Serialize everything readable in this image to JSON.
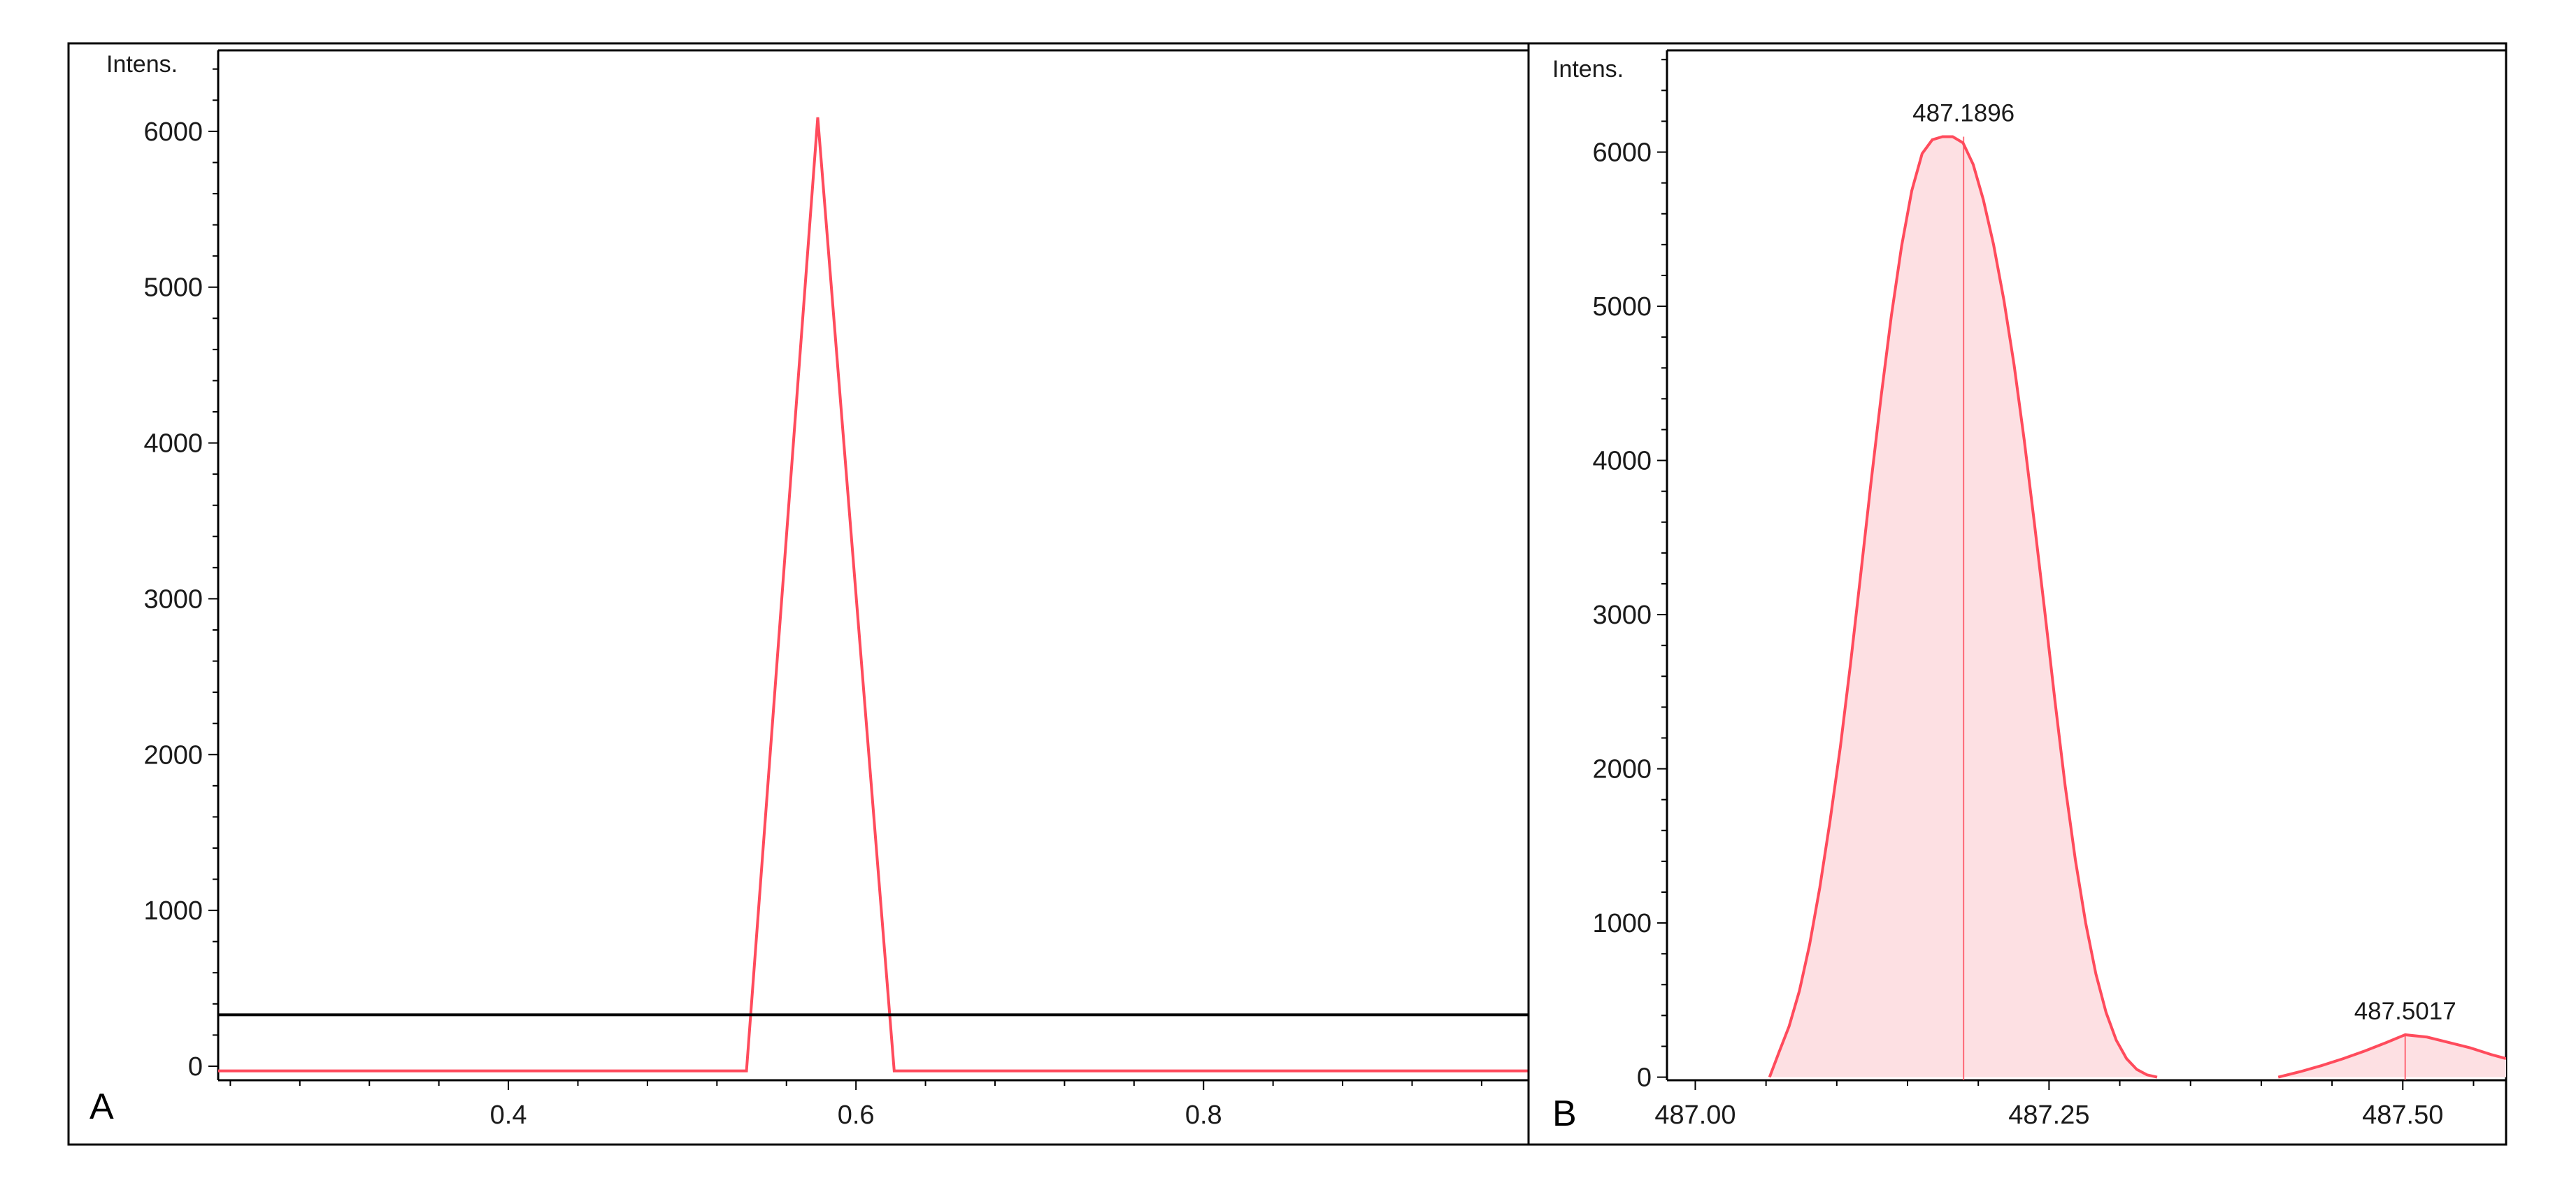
{
  "colors": {
    "trace": "#ff4b5c",
    "fill": "#fde0e3",
    "axis": "#000000",
    "text": "#1a1a1a"
  },
  "chart_data": [
    {
      "panel_label": "A",
      "type": "line",
      "ylabel": "Intens.",
      "xlabel": "",
      "xlim": [
        0.233,
        0.987
      ],
      "ylim": [
        -90,
        6520
      ],
      "x_ticks": [
        "0.4",
        "0.6",
        "0.8"
      ],
      "y_ticks": [
        "0",
        "1000",
        "2000",
        "3000",
        "4000",
        "5000",
        "6000"
      ],
      "threshold_line": 330,
      "series": [
        {
          "x": [
            0.233,
            0.537,
            0.578,
            0.622,
            0.987
          ],
          "y": [
            -30,
            -30,
            6090,
            -30,
            -30
          ]
        }
      ]
    },
    {
      "panel_label": "B",
      "type": "area",
      "ylabel": "Intens.",
      "xlabel": "",
      "xlim": [
        486.98,
        487.573
      ],
      "ylim": [
        -20,
        6660
      ],
      "x_ticks": [
        "487.00",
        "487.25",
        "487.50"
      ],
      "y_ticks": [
        "0",
        "1000",
        "2000",
        "3000",
        "4000",
        "5000",
        "6000"
      ],
      "peaks": [
        {
          "label": "487.1896",
          "x": [
            487.0525,
            487.0591,
            487.0663,
            487.0736,
            487.0808,
            487.088,
            487.0952,
            487.1025,
            487.1097,
            487.1169,
            487.1241,
            487.1314,
            487.1386,
            487.1458,
            487.153,
            487.1603,
            487.1675,
            487.1747,
            487.1819,
            487.1892,
            487.1964,
            487.2036,
            487.2108,
            487.2181,
            487.2253,
            487.2325,
            487.2397,
            487.247,
            487.2542,
            487.2614,
            487.2686,
            487.2759,
            487.2831,
            487.2903,
            487.2975,
            487.3048,
            487.312,
            487.3192,
            487.3264
          ],
          "y": [
            0,
            160,
            330,
            560,
            860,
            1230,
            1660,
            2140,
            2680,
            3260,
            3850,
            4420,
            4940,
            5390,
            5750,
            5990,
            6080,
            6100,
            6100,
            6060,
            5920,
            5690,
            5400,
            5040,
            4620,
            4130,
            3590,
            3020,
            2440,
            1890,
            1410,
            1000,
            670,
            420,
            240,
            120,
            50,
            15,
            0
          ]
        },
        {
          "label": "487.5017",
          "x": [
            487.412,
            487.4273,
            487.4426,
            487.4579,
            487.4732,
            487.4885,
            487.5017,
            487.5171,
            487.5324,
            487.5477,
            487.563,
            487.573
          ],
          "y": [
            0,
            35,
            75,
            120,
            170,
            225,
            275,
            260,
            225,
            190,
            145,
            120
          ]
        }
      ]
    }
  ]
}
